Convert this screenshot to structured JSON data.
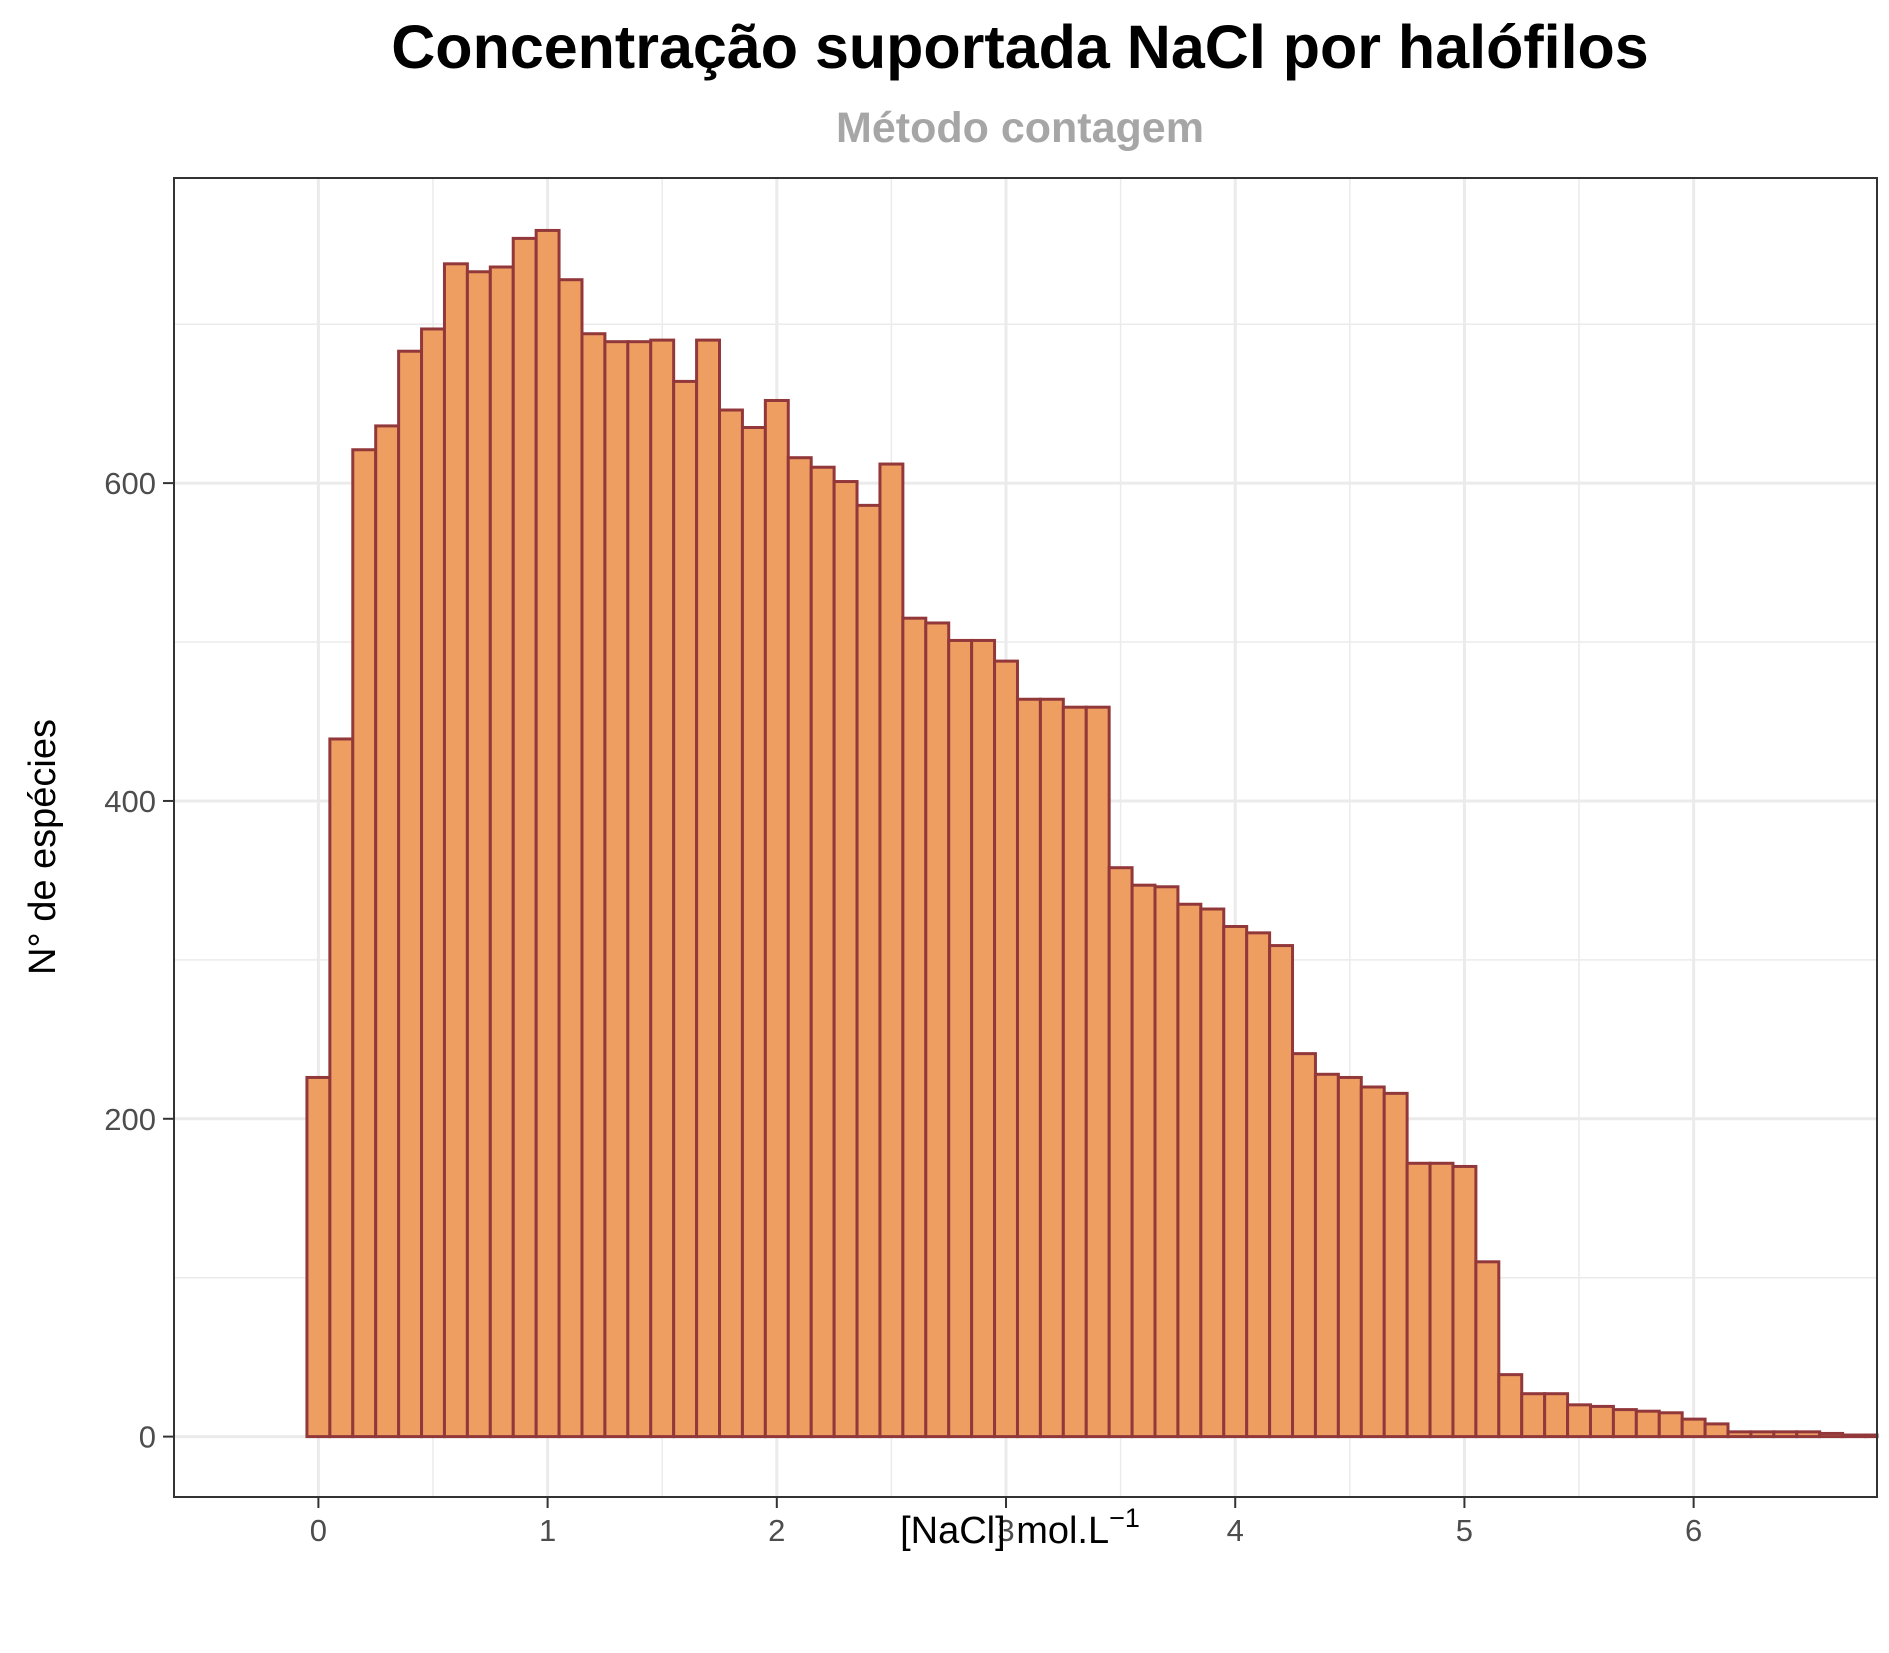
{
  "chart_data": {
    "type": "bar",
    "title": "Concentração suportada NaCl por halófilos",
    "subtitle": "Método contagem",
    "xlabel": "[NaCl] mol.L",
    "xlabel_superscript": "−1",
    "ylabel": "N° de espécies",
    "bin_width": 0.1,
    "bin_start": -0.05,
    "values": [
      226,
      439,
      621,
      636,
      683,
      697,
      738,
      733,
      736,
      754,
      759,
      728,
      694,
      689,
      689,
      690,
      664,
      690,
      646,
      635,
      652,
      616,
      610,
      601,
      586,
      612,
      515,
      512,
      501,
      501,
      488,
      464,
      464,
      459,
      459,
      358,
      347,
      346,
      335,
      332,
      321,
      317,
      309,
      241,
      228,
      226,
      220,
      216,
      172,
      172,
      170,
      110,
      39,
      27,
      27,
      20,
      19,
      17,
      16,
      15,
      11,
      8,
      3,
      3,
      3,
      3,
      2,
      1,
      1
    ],
    "xlim": [
      -0.63,
      6.8
    ],
    "ylim": [
      -38,
      792
    ],
    "x_ticks": [
      "0",
      "1",
      "2",
      "3",
      "4",
      "5",
      "6"
    ],
    "y_ticks": [
      "0",
      "200",
      "400",
      "600"
    ],
    "grid": true,
    "colors": {
      "fill": "#EE9E61",
      "outline": "#93383A",
      "grid": "#EBEBEB",
      "panel_border": "#333333",
      "subtitle": "#A6A6A6",
      "tick_text": "#4D4D4D"
    }
  }
}
